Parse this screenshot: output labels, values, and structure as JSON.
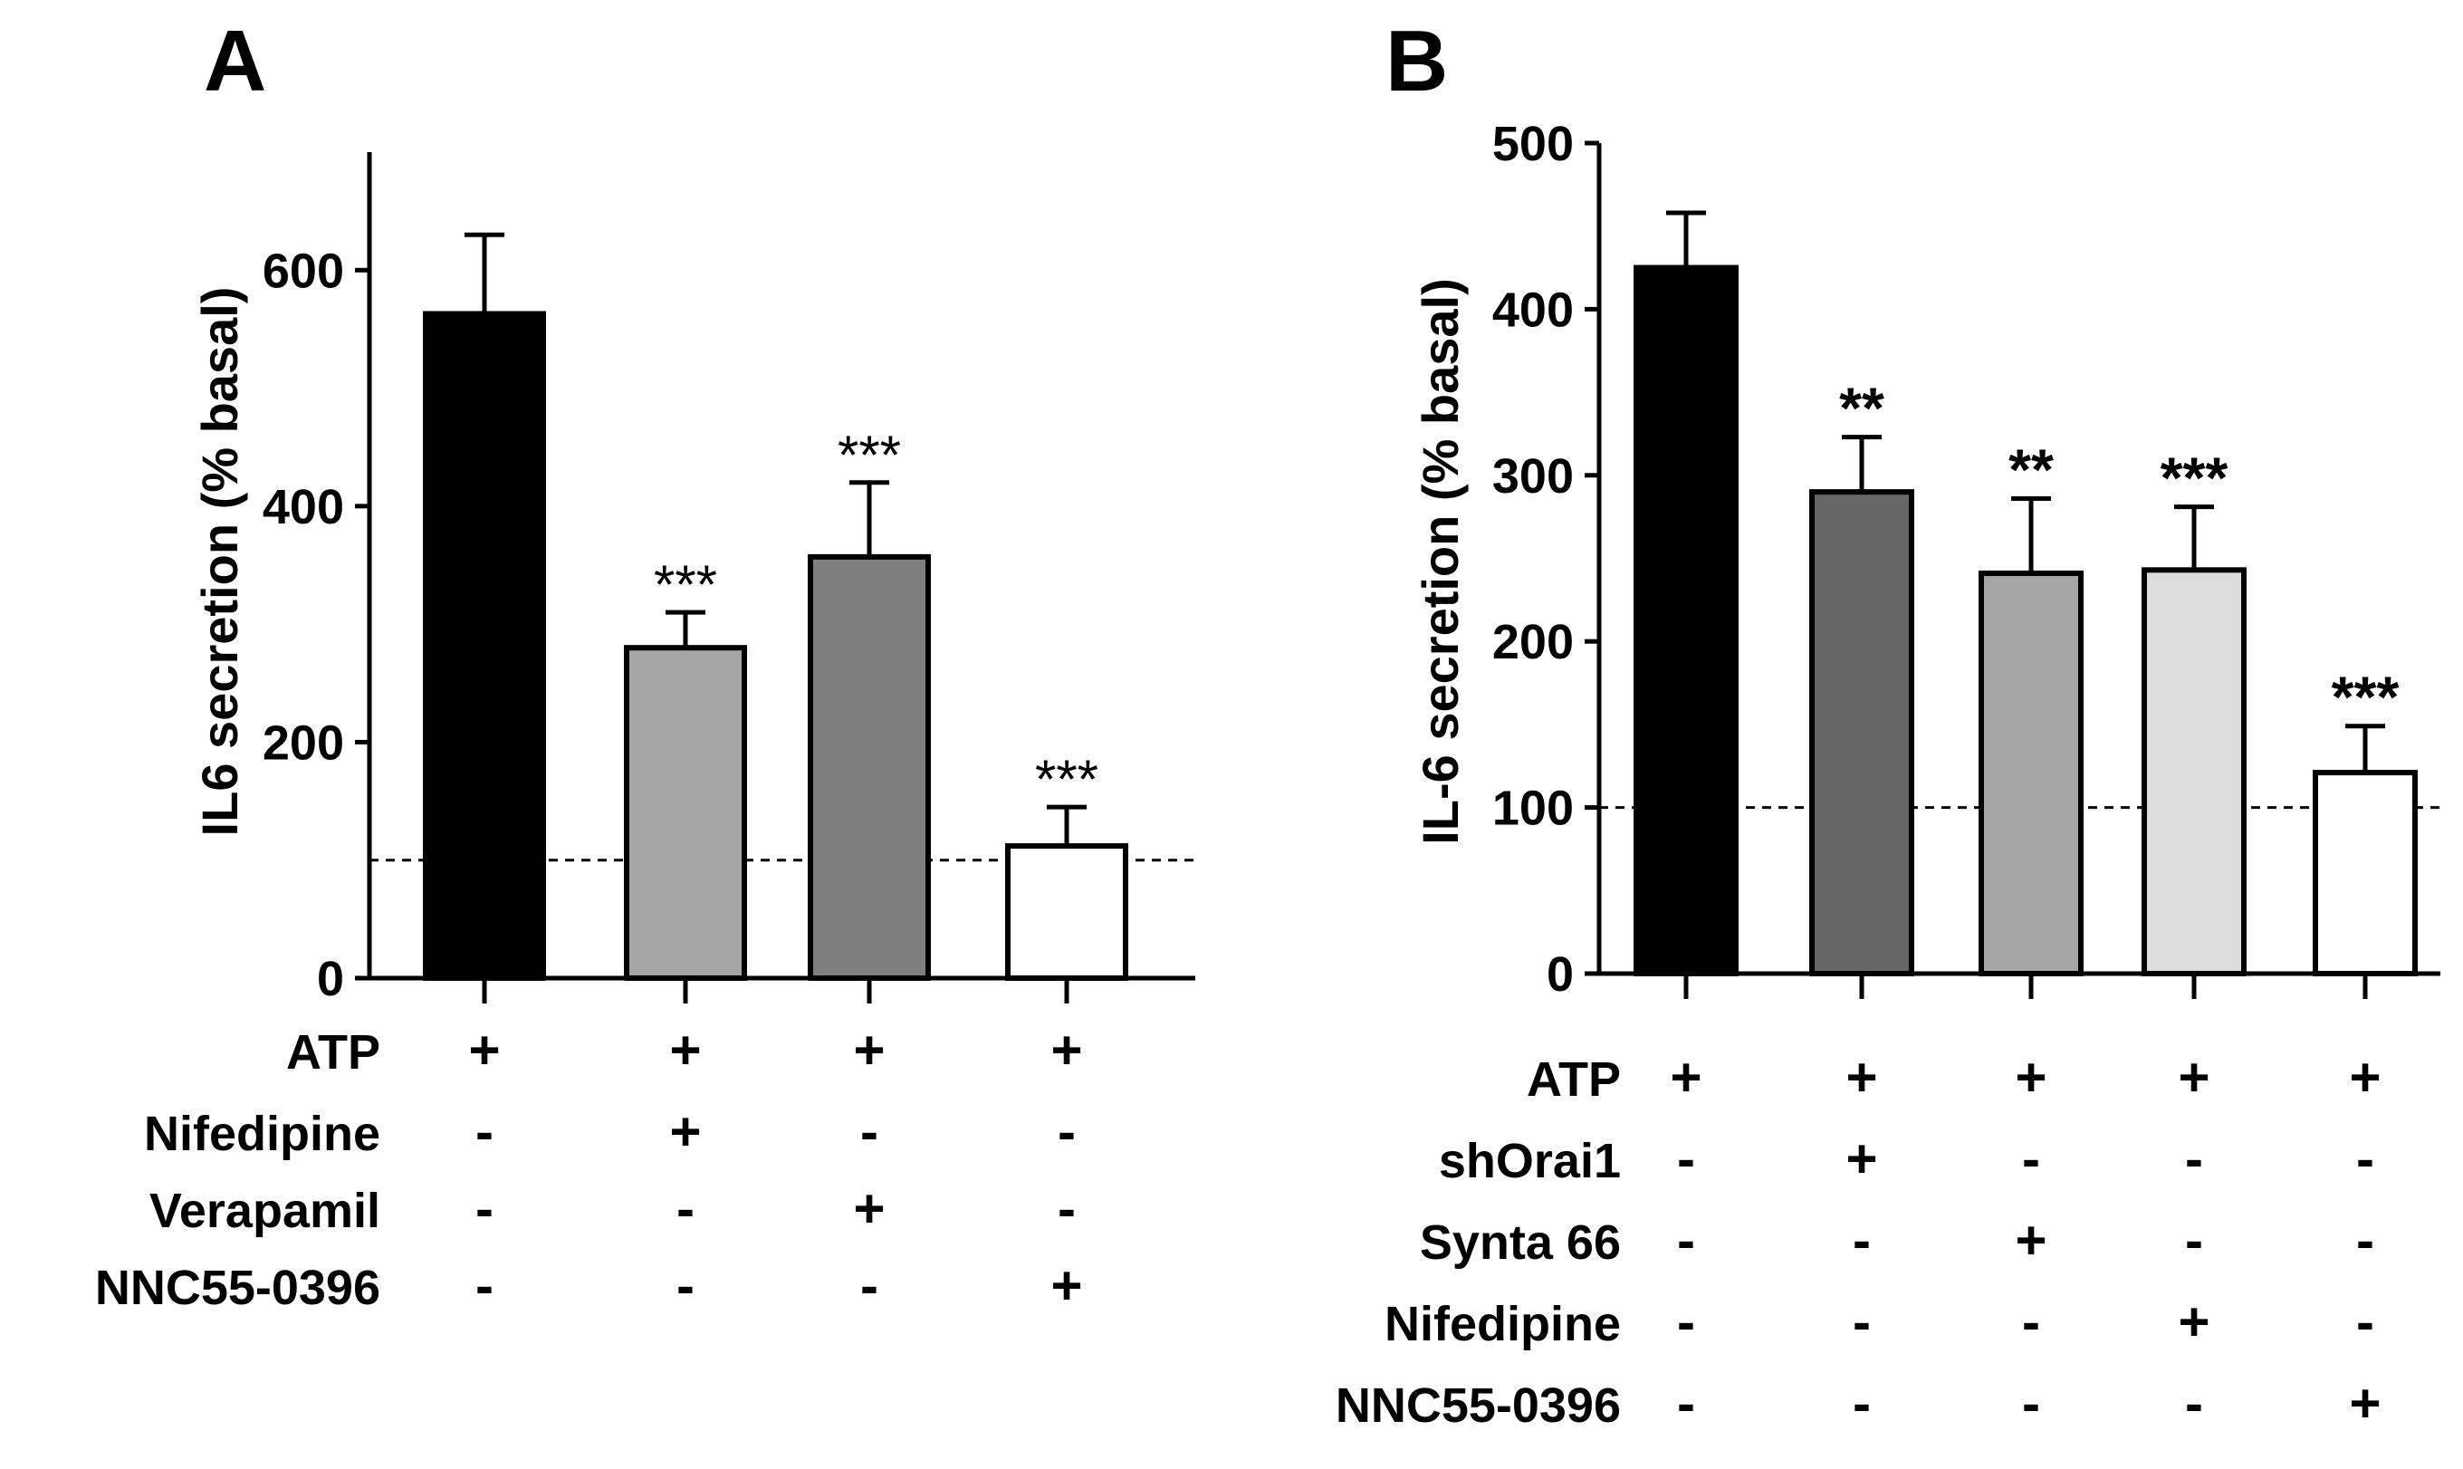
{
  "chart_data": [
    {
      "panel": "A",
      "type": "bar",
      "ylabel": "IL6 secretion (% basal)",
      "ylim": [
        0,
        700
      ],
      "yticks": [
        0,
        200,
        400,
        600
      ],
      "baseline": 100,
      "bars": [
        {
          "value": 563,
          "error": 67,
          "fill": "#000000",
          "sig": ""
        },
        {
          "value": 280,
          "error": 30,
          "fill": "#a6a6a6",
          "sig": "***"
        },
        {
          "value": 357,
          "error": 63,
          "fill": "#7f7f7f",
          "sig": "***"
        },
        {
          "value": 112,
          "error": 33,
          "fill": "#ffffff",
          "sig": "***"
        }
      ],
      "treatments": [
        {
          "label": "ATP",
          "signs": [
            "+",
            "+",
            "+",
            "+"
          ]
        },
        {
          "label": "Nifedipine",
          "signs": [
            "-",
            "+",
            "-",
            "-"
          ]
        },
        {
          "label": "Verapamil",
          "signs": [
            "-",
            "-",
            "+",
            "-"
          ]
        },
        {
          "label": "NNC55-0396",
          "signs": [
            "-",
            "-",
            "-",
            "+"
          ]
        }
      ]
    },
    {
      "panel": "B",
      "type": "bar",
      "ylabel": "IL-6 secretion (% basal)",
      "ylim": [
        0,
        500
      ],
      "yticks": [
        0,
        100,
        200,
        300,
        400,
        500
      ],
      "baseline": 100,
      "bars": [
        {
          "value": 425,
          "error": 33,
          "fill": "#000000",
          "sig": ""
        },
        {
          "value": 290,
          "error": 33,
          "fill": "#666666",
          "sig": "**"
        },
        {
          "value": 241,
          "error": 45,
          "fill": "#a6a6a6",
          "sig": "**"
        },
        {
          "value": 243,
          "error": 38,
          "fill": "#dcdcdc",
          "sig": "***"
        },
        {
          "value": 121,
          "error": 28,
          "fill": "#ffffff",
          "sig": "***"
        }
      ],
      "treatments": [
        {
          "label": "ATP",
          "signs": [
            "+",
            "+",
            "+",
            "+",
            "+"
          ]
        },
        {
          "label": "shOrai1",
          "signs": [
            "-",
            "+",
            "-",
            "-",
            "-"
          ]
        },
        {
          "label": "Synta 66",
          "signs": [
            "-",
            "-",
            "+",
            "-",
            "-"
          ]
        },
        {
          "label": "Nifedipine",
          "signs": [
            "-",
            "-",
            "-",
            "+",
            "-"
          ]
        },
        {
          "label": "NNC55-0396",
          "signs": [
            "-",
            "-",
            "-",
            "-",
            "+"
          ]
        }
      ]
    }
  ]
}
